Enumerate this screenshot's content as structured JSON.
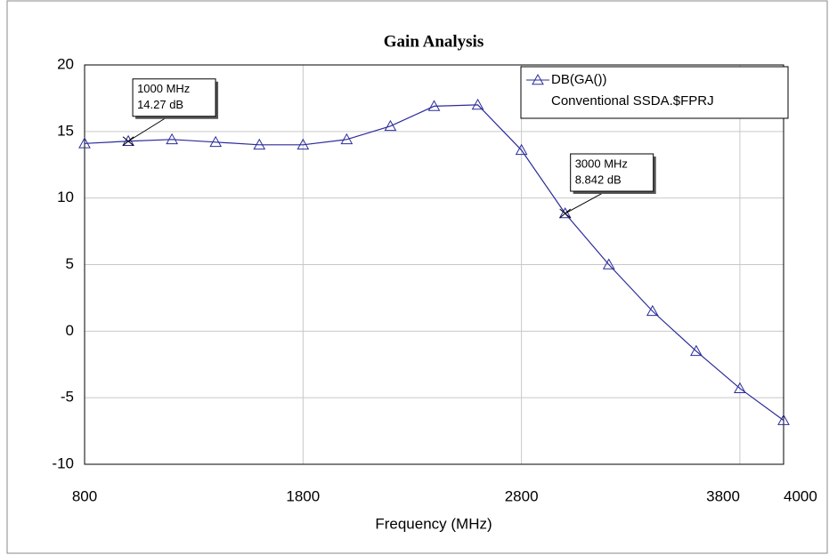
{
  "chart_data": {
    "type": "line",
    "title": "Gain Analysis",
    "x_label": "Frequency (MHz)",
    "x": [
      800,
      1000,
      1200,
      1400,
      1600,
      1800,
      2000,
      2200,
      2400,
      2600,
      2800,
      3000,
      3200,
      3400,
      3600,
      3800,
      4000
    ],
    "series": [
      {
        "name": "DB(GA())",
        "source": "Conventional SSDA.$FPRJ",
        "color": "#2b2b9c",
        "values": [
          14.1,
          14.27,
          14.4,
          14.2,
          14.0,
          14.0,
          14.4,
          15.4,
          16.9,
          17.0,
          13.6,
          8.842,
          5.0,
          1.5,
          -1.5,
          -4.3,
          -6.7
        ]
      }
    ],
    "xlim": [
      800,
      4000
    ],
    "xticks": [
      800,
      1800,
      2800,
      3800,
      4000
    ],
    "ylim": [
      -10,
      20
    ],
    "yticks": [
      -10,
      -5,
      0,
      5,
      10,
      15,
      20
    ],
    "grid": true,
    "legend": "upper right",
    "annotations": [
      {
        "x": 1000,
        "y": 14.27,
        "lines": [
          "1000 MHz",
          "14.27 dB"
        ]
      },
      {
        "x": 3000,
        "y": 8.842,
        "lines": [
          "3000 MHz",
          "8.842 dB"
        ]
      }
    ]
  }
}
